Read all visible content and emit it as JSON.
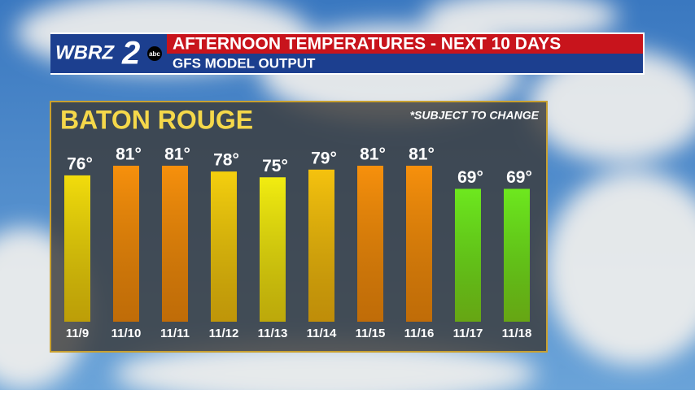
{
  "logo": {
    "station": "WBRZ",
    "channel": "2",
    "network": "abc"
  },
  "chart_data": {
    "type": "bar",
    "title": "AFTERNOON TEMPERATURES - NEXT 10 DAYS",
    "subtitle": "GFS MODEL OUTPUT",
    "location": "BATON ROUGE",
    "note": "*SUBJECT TO CHANGE",
    "categories": [
      "11/9",
      "11/10",
      "11/11",
      "11/12",
      "11/13",
      "11/14",
      "11/15",
      "11/16",
      "11/17",
      "11/18"
    ],
    "values": [
      76,
      81,
      81,
      78,
      75,
      79,
      81,
      81,
      69,
      69
    ],
    "value_labels": [
      "76°",
      "81°",
      "81°",
      "78°",
      "75°",
      "79°",
      "81°",
      "81°",
      "69°",
      "69°"
    ],
    "colors": [
      "#f2dc0c",
      "#f7900c",
      "#f7900c",
      "#f5cf0e",
      "#f2ec10",
      "#f5c20e",
      "#f7900c",
      "#f7900c",
      "#6ee81e",
      "#6ee81e"
    ]
  }
}
